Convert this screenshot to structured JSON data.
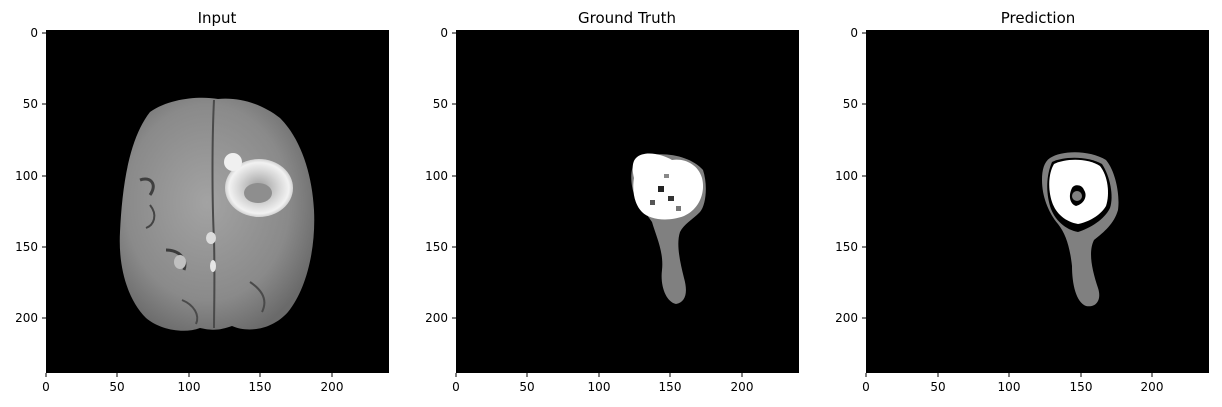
{
  "figure": {
    "panels": [
      {
        "id": "input",
        "title": "Input",
        "xticks": [
          "0",
          "50",
          "100",
          "150",
          "200"
        ],
        "yticks": [
          "0",
          "50",
          "100",
          "150",
          "200"
        ]
      },
      {
        "id": "ground-truth",
        "title": "Ground Truth",
        "xticks": [
          "0",
          "50",
          "100",
          "150",
          "200"
        ],
        "yticks": [
          "0",
          "50",
          "100",
          "150",
          "200"
        ]
      },
      {
        "id": "prediction",
        "title": "Prediction",
        "xticks": [
          "0",
          "50",
          "100",
          "150",
          "200"
        ],
        "yticks": [
          "0",
          "50",
          "100",
          "150",
          "200"
        ]
      }
    ],
    "image_size": [
      240,
      240
    ],
    "colors": {
      "background": "#000000",
      "mask_gray": "#808080",
      "mask_white": "#ffffff",
      "brain_tissue": "#8f8f8f"
    }
  }
}
